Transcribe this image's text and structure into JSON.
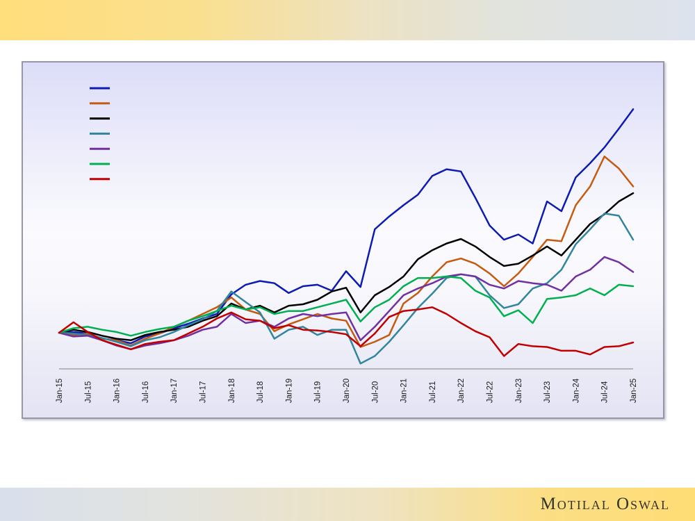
{
  "slide": {
    "brand": "Motilal Oswal"
  },
  "theme": {
    "top_bar_gradient": [
      "#FFDE7B",
      "#DDE3EE"
    ],
    "bottom_bar_gradient": [
      "#D9E0EC",
      "#FFDD75"
    ],
    "panel_border": "#9696A6",
    "panel_bg_top": "#DCDDF8",
    "panel_bg_bottom": "#E3E3F4",
    "axis_color": "#7F7F7F",
    "tick_text_color": "#1A1A1A"
  },
  "chart_data": {
    "type": "line",
    "title": "",
    "xlabel": "",
    "ylabel": "",
    "grid": false,
    "legend_position": "top-left-inside",
    "legend_labels_visible": false,
    "y_axis_labels_visible": false,
    "baseline_value": 100,
    "ylim": [
      50,
      460
    ],
    "x_axis": {
      "tick_labels": [
        "Jan-15",
        "Jul-15",
        "Jan-16",
        "Jul-16",
        "Jan-17",
        "Jul-17",
        "Jan-18",
        "Jul-18",
        "Jan-19",
        "Jul-19",
        "Jan-20",
        "Jul-20",
        "Jan-21",
        "Jul-21",
        "Jan-22",
        "Jul-22",
        "Jan-23",
        "Jul-23",
        "Jan-24",
        "Jul-24",
        "Jan-25"
      ],
      "tick_months": [
        0,
        6,
        12,
        18,
        24,
        30,
        36,
        42,
        48,
        54,
        60,
        66,
        72,
        78,
        84,
        90,
        96,
        102,
        108,
        114,
        120
      ]
    },
    "sample_months": [
      0,
      3,
      6,
      9,
      12,
      15,
      18,
      21,
      24,
      27,
      30,
      33,
      36,
      39,
      42,
      45,
      48,
      51,
      54,
      57,
      60,
      63,
      66,
      69,
      72,
      75,
      78,
      81,
      84,
      87,
      90,
      93,
      96,
      99,
      102,
      105,
      108,
      111,
      114,
      117,
      120
    ],
    "series": [
      {
        "name": "series-1-dark-blue",
        "color": "#0D1BB2",
        "values": [
          100,
          101,
          99,
          92,
          90,
          86,
          95,
          99,
          106,
          112,
          119,
          125,
          151,
          164,
          169,
          166,
          153,
          162,
          164,
          156,
          182,
          161,
          238,
          255,
          270,
          284,
          309,
          318,
          315,
          280,
          243,
          224,
          231,
          219,
          275,
          262,
          307,
          326,
          347,
          372,
          398
        ]
      },
      {
        "name": "series-2-orange",
        "color": "#C55A11",
        "values": [
          100,
          97,
          99,
          92,
          90,
          83,
          92,
          99,
          108,
          116,
          125,
          134,
          147,
          131,
          125,
          102,
          111,
          118,
          125,
          119,
          116,
          81,
          88,
          97,
          139,
          153,
          175,
          194,
          199,
          192,
          179,
          162,
          179,
          201,
          224,
          222,
          270,
          295,
          335,
          319,
          295
        ]
      },
      {
        "name": "series-3-black",
        "color": "#000000",
        "values": [
          100,
          104,
          101,
          96,
          92,
          90,
          97,
          101,
          104,
          108,
          116,
          122,
          139,
          131,
          136,
          127,
          136,
          138,
          144,
          155,
          160,
          127,
          150,
          161,
          175,
          198,
          210,
          219,
          225,
          215,
          201,
          189,
          192,
          203,
          215,
          203,
          224,
          245,
          258,
          275,
          286
        ]
      },
      {
        "name": "series-4-teal",
        "color": "#31859C",
        "values": [
          100,
          99,
          97,
          93,
          88,
          82,
          90,
          94,
          101,
          110,
          118,
          129,
          155,
          141,
          127,
          92,
          104,
          108,
          97,
          104,
          104,
          59,
          69,
          88,
          110,
          133,
          152,
          173,
          178,
          175,
          150,
          133,
          138,
          159,
          166,
          184,
          218,
          238,
          259,
          256,
          224
        ]
      },
      {
        "name": "series-5-purple",
        "color": "#7030A0",
        "values": [
          100,
          95,
          96,
          90,
          83,
          78,
          83,
          86,
          90,
          96,
          104,
          108,
          125,
          113,
          116,
          108,
          119,
          125,
          122,
          125,
          127,
          90,
          108,
          129,
          150,
          159,
          166,
          175,
          178,
          175,
          164,
          159,
          169,
          166,
          164,
          156,
          175,
          184,
          201,
          194,
          181
        ]
      },
      {
        "name": "series-6-green",
        "color": "#00B050",
        "values": [
          100,
          106,
          108,
          104,
          101,
          96,
          101,
          105,
          108,
          116,
          122,
          129,
          136,
          131,
          134,
          125,
          129,
          129,
          134,
          139,
          144,
          115,
          134,
          144,
          162,
          173,
          173,
          175,
          173,
          156,
          147,
          122,
          130,
          113,
          145,
          147,
          150,
          159,
          150,
          164,
          162
        ]
      },
      {
        "name": "series-7-red",
        "color": "#C00000",
        "values": [
          100,
          114,
          101,
          90,
          84,
          78,
          85,
          88,
          90,
          99,
          108,
          119,
          127,
          118,
          116,
          106,
          110,
          104,
          103,
          101,
          98,
          82,
          99,
          121,
          129,
          131,
          134,
          125,
          113,
          102,
          94,
          69,
          85,
          82,
          81,
          76,
          76,
          71,
          81,
          82,
          87
        ]
      }
    ]
  }
}
